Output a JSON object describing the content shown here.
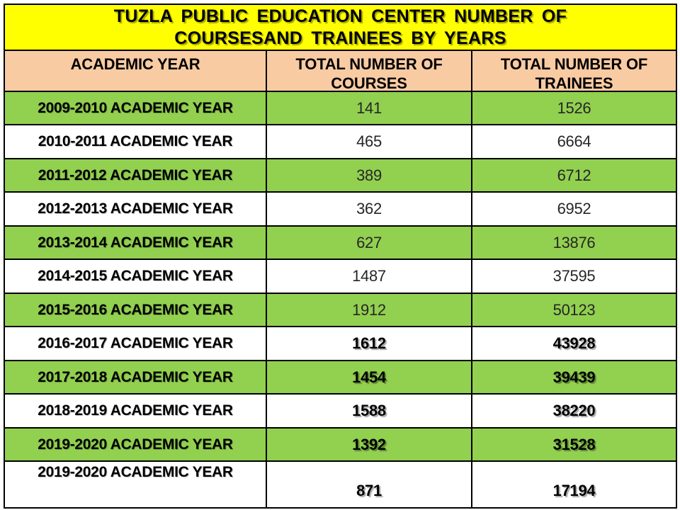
{
  "title": {
    "line1": "TUZLA PUBLIC EDUCATION CENTER NUMBER OF",
    "line2": "COURSESAND TRAINEES BY YEARS"
  },
  "header": {
    "academic_year": "ACADEMIC YEAR",
    "courses_line1": "TOTAL NUMBER OF",
    "courses_line2": "COURSES",
    "trainees_line1": "TOTAL NUMBER OF",
    "trainees_line2": "TRAINEES"
  },
  "rows": [
    {
      "year": "2009-2010 ACADEMIC YEAR",
      "courses": "141",
      "trainees": "1526",
      "highlighted": true,
      "bold_values": false
    },
    {
      "year": "2010-2011 ACADEMIC YEAR",
      "courses": "465",
      "trainees": "6664",
      "highlighted": false,
      "bold_values": false
    },
    {
      "year": "2011-2012 ACADEMIC YEAR",
      "courses": "389",
      "trainees": "6712",
      "highlighted": true,
      "bold_values": false
    },
    {
      "year": "2012-2013 ACADEMIC YEAR",
      "courses": "362",
      "trainees": "6952",
      "highlighted": false,
      "bold_values": false
    },
    {
      "year": "2013-2014 ACADEMIC YEAR",
      "courses": "627",
      "trainees": "13876",
      "highlighted": true,
      "bold_values": false
    },
    {
      "year": "2014-2015 ACADEMIC YEAR",
      "courses": "1487",
      "trainees": "37595",
      "highlighted": false,
      "bold_values": false
    },
    {
      "year": "2015-2016 ACADEMIC YEAR",
      "courses": "1912",
      "trainees": "50123",
      "highlighted": true,
      "bold_values": false
    },
    {
      "year": "2016-2017 ACADEMIC YEAR",
      "courses": "1612",
      "trainees": "43928",
      "highlighted": false,
      "bold_values": true
    },
    {
      "year": "2017-2018 ACADEMIC YEAR",
      "courses": "1454",
      "trainees": "39439",
      "highlighted": true,
      "bold_values": true
    },
    {
      "year": "2018-2019 ACADEMIC YEAR",
      "courses": "1588",
      "trainees": "38220",
      "highlighted": false,
      "bold_values": true
    },
    {
      "year": "2019-2020 ACADEMIC YEAR",
      "courses": "1392",
      "trainees": "31528",
      "highlighted": true,
      "bold_values": true
    },
    {
      "year": "2019-2020 ACADEMIC YEAR",
      "courses": "871",
      "trainees": "17194",
      "highlighted": false,
      "bold_values": true
    }
  ],
  "colors": {
    "title_bg": "#FFFF00",
    "header_bg": "#F9CBA3",
    "row_highlight": "#92D050",
    "row_plain": "#FFFFFF",
    "border": "#000000",
    "text": "#000000"
  },
  "chart_data": {
    "type": "table",
    "title": "TUZLA PUBLIC EDUCATION CENTER NUMBER OF COURSESAND TRAINEES BY YEARS",
    "columns": [
      "ACADEMIC YEAR",
      "TOTAL NUMBER OF COURSES",
      "TOTAL NUMBER OF TRAINEES"
    ],
    "categories": [
      "2009-2010",
      "2010-2011",
      "2011-2012",
      "2012-2013",
      "2013-2014",
      "2014-2015",
      "2015-2016",
      "2016-2017",
      "2017-2018",
      "2018-2019",
      "2019-2020",
      "2019-2020"
    ],
    "series": [
      {
        "name": "TOTAL NUMBER OF COURSES",
        "values": [
          141,
          465,
          389,
          362,
          627,
          1487,
          1912,
          1612,
          1454,
          1588,
          1392,
          871
        ]
      },
      {
        "name": "TOTAL NUMBER OF TRAINEES",
        "values": [
          1526,
          6664,
          6712,
          6952,
          13876,
          37595,
          50123,
          43928,
          39439,
          38220,
          31528,
          17194
        ]
      }
    ],
    "layout_hints": {
      "striped_rows": true,
      "stripe_color": "#92D050",
      "header_color": "#F9CBA3",
      "title_color": "#FFFF00"
    }
  }
}
